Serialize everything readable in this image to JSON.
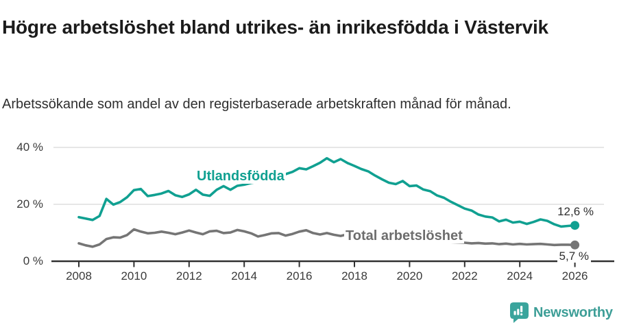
{
  "header": {
    "title": "Högre arbetslöshet bland utrikes- än inrikesfödda i Västervik",
    "subtitle": "Arbetssökande som andel av den registerbaserade arbetskraften månad för månad."
  },
  "chart_data": {
    "type": "line",
    "title": "Högre arbetslöshet bland utrikes- än inrikesfödda i Västervik",
    "unit": "%",
    "x_start": 2008,
    "x_step": 0.25,
    "xlim": [
      2007.5,
      2027
    ],
    "ylim": [
      0,
      42
    ],
    "grid": "horizontal",
    "x_ticks": [
      2008,
      2010,
      2012,
      2014,
      2016,
      2018,
      2020,
      2022,
      2024,
      2026
    ],
    "y_ticks": [
      {
        "value": 0,
        "label": "0 %"
      },
      {
        "value": 20,
        "label": "20 %"
      },
      {
        "value": 40,
        "label": "40 %"
      }
    ],
    "series": [
      {
        "name": "Utlandsfödda",
        "color": "#10a091",
        "end_label": "12,6 %",
        "last_value": 12.6,
        "values": [
          15.5,
          15.0,
          14.5,
          15.9,
          21.9,
          19.9,
          20.8,
          22.5,
          25.0,
          25.4,
          22.9,
          23.3,
          23.8,
          24.7,
          23.2,
          22.6,
          23.5,
          25.1,
          23.4,
          23.0,
          25.1,
          26.4,
          25.1,
          26.5,
          26.9,
          27.5,
          27.9,
          28.4,
          29.0,
          29.7,
          30.6,
          31.4,
          32.7,
          32.3,
          33.4,
          34.6,
          36.2,
          34.8,
          35.9,
          34.5,
          33.5,
          32.4,
          31.6,
          30.1,
          28.8,
          27.6,
          27.1,
          28.2,
          26.4,
          26.6,
          25.2,
          24.6,
          23.1,
          22.3,
          20.9,
          19.7,
          18.5,
          17.8,
          16.4,
          15.7,
          15.4,
          14.0,
          14.6,
          13.6,
          13.9,
          13.1,
          13.8,
          14.7,
          14.2,
          13.0,
          12.2,
          12.4,
          12.6
        ]
      },
      {
        "name": "Total arbetslöshet",
        "color": "#757575",
        "end_label": "5,7 %",
        "last_value": 5.7,
        "values": [
          6.3,
          5.6,
          5.1,
          5.9,
          7.8,
          8.4,
          8.3,
          9.2,
          11.2,
          10.4,
          9.8,
          10.0,
          10.4,
          10.0,
          9.5,
          10.1,
          10.8,
          10.1,
          9.5,
          10.5,
          10.7,
          9.9,
          10.1,
          11.0,
          10.5,
          9.8,
          8.7,
          9.2,
          9.8,
          9.9,
          9.0,
          9.6,
          10.4,
          10.9,
          9.9,
          9.4,
          9.9,
          9.3,
          8.9,
          9.5,
          9.6,
          8.9,
          8.5,
          9.1,
          8.8,
          8.3,
          8.0,
          8.4,
          8.1,
          7.9,
          7.6,
          7.3,
          7.1,
          6.9,
          6.7,
          6.6,
          6.5,
          6.3,
          6.4,
          6.2,
          6.3,
          6.0,
          6.2,
          5.9,
          6.1,
          5.9,
          6.0,
          6.1,
          5.9,
          5.7,
          5.8,
          5.8,
          5.7
        ]
      }
    ]
  },
  "footer": {
    "brand": "Newsworthy"
  },
  "colors": {
    "accent_teal": "#10a091",
    "series_gray": "#757575",
    "gray_label": "#6d6d6d",
    "brand_teal": "#3d9e97",
    "grid": "#d8d8d8",
    "axis": "#303030",
    "text_dark": "#1b1b1b"
  }
}
